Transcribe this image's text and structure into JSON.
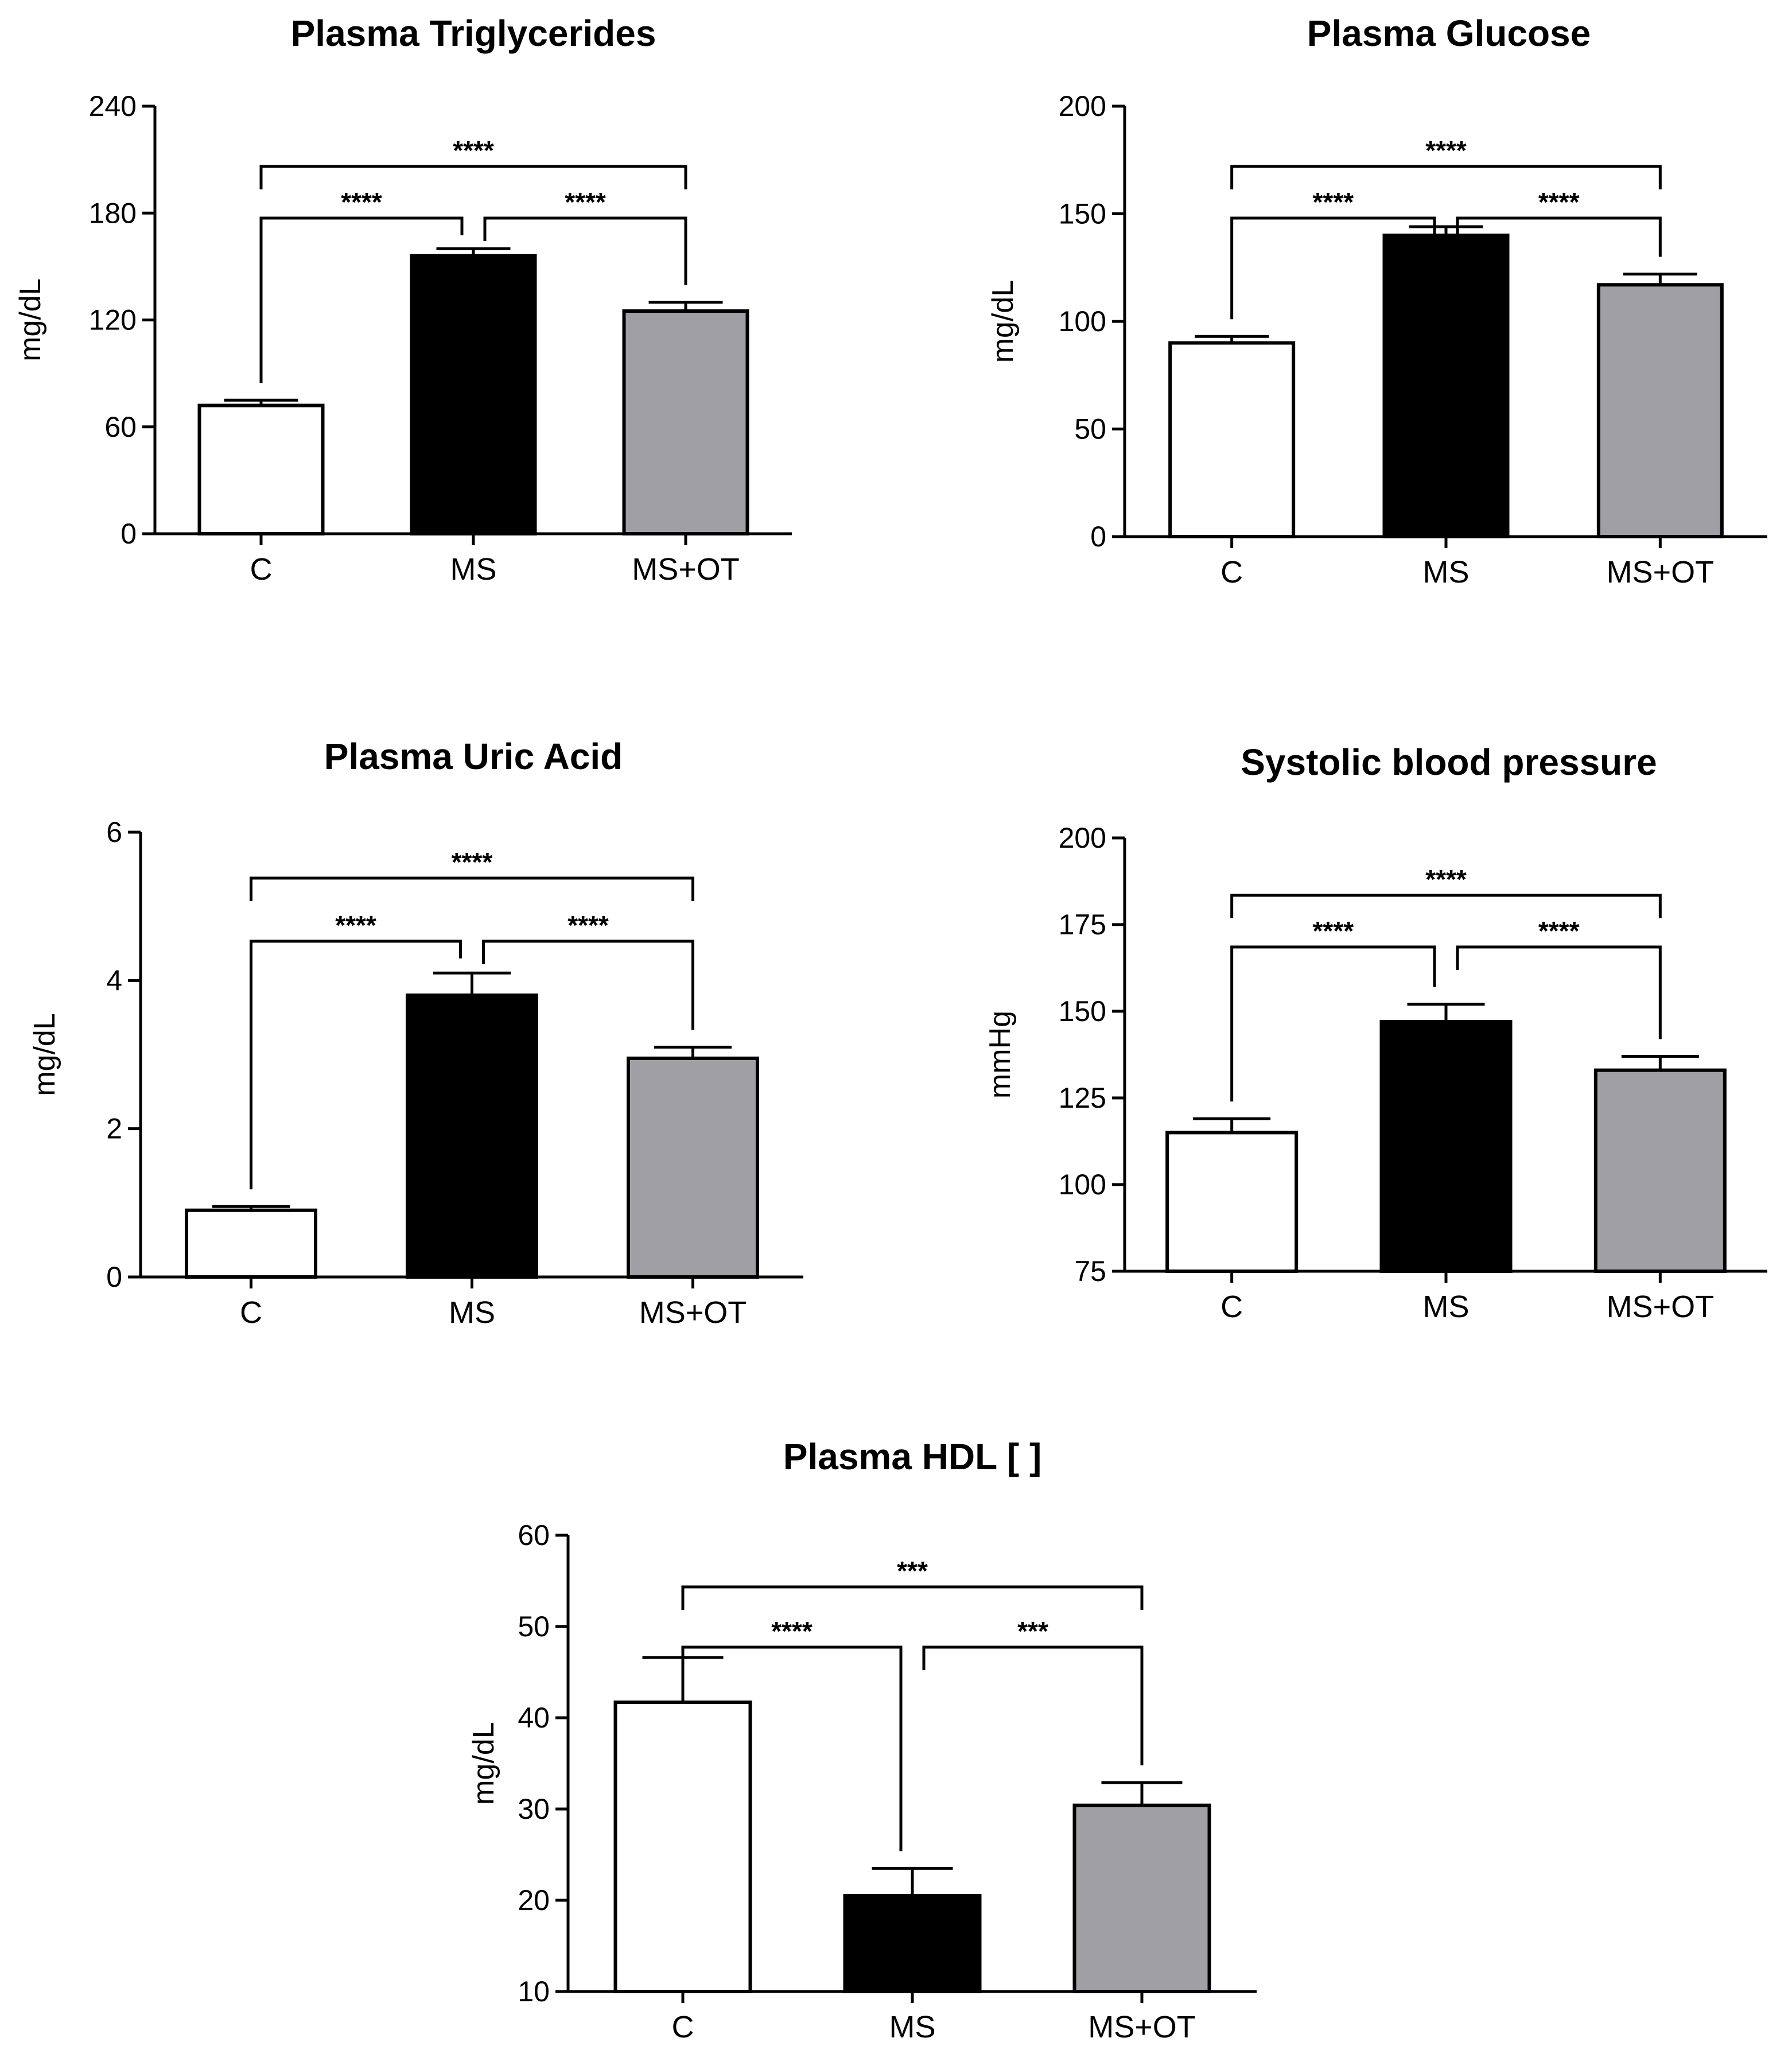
{
  "chart_data": [
    {
      "type": "bar",
      "title": "Plasma Triglycerides",
      "xlabel": "",
      "ylabel": "mg/dL",
      "ylim": [
        0,
        240
      ],
      "yticks": [
        0,
        60,
        120,
        180,
        240
      ],
      "categories": [
        "C",
        "MS",
        "MS+OT"
      ],
      "values": [
        72,
        156,
        125
      ],
      "errors": [
        3,
        4,
        5
      ],
      "bar_colors": [
        "#ffffff",
        "#000000",
        "#a0a0a4"
      ],
      "grid": false,
      "significance": [
        {
          "from": 0,
          "to": 1,
          "label": "****",
          "level": 1
        },
        {
          "from": 1,
          "to": 2,
          "label": "****",
          "level": 1
        },
        {
          "from": 0,
          "to": 2,
          "label": "****",
          "level": 2
        }
      ]
    },
    {
      "type": "bar",
      "title": "Plasma Glucose",
      "xlabel": "",
      "ylabel": "mg/dL",
      "ylim": [
        0,
        200
      ],
      "yticks": [
        0,
        50,
        100,
        150,
        200
      ],
      "categories": [
        "C",
        "MS",
        "MS+OT"
      ],
      "values": [
        90,
        140,
        117
      ],
      "errors": [
        3,
        4,
        5
      ],
      "bar_colors": [
        "#ffffff",
        "#000000",
        "#a0a0a4"
      ],
      "grid": false,
      "significance": [
        {
          "from": 0,
          "to": 1,
          "label": "****",
          "level": 1
        },
        {
          "from": 1,
          "to": 2,
          "label": "****",
          "level": 1
        },
        {
          "from": 0,
          "to": 2,
          "label": "****",
          "level": 2
        }
      ]
    },
    {
      "type": "bar",
      "title": "Plasma Uric Acid",
      "xlabel": "",
      "ylabel": "mg/dL",
      "ylim": [
        0,
        6
      ],
      "yticks": [
        0,
        2,
        4,
        6
      ],
      "categories": [
        "C",
        "MS",
        "MS+OT"
      ],
      "values": [
        0.9,
        3.8,
        2.95
      ],
      "errors": [
        0.05,
        0.3,
        0.15
      ],
      "bar_colors": [
        "#ffffff",
        "#000000",
        "#a0a0a4"
      ],
      "grid": false,
      "significance": [
        {
          "from": 0,
          "to": 1,
          "label": "****",
          "level": 1
        },
        {
          "from": 1,
          "to": 2,
          "label": "****",
          "level": 1
        },
        {
          "from": 0,
          "to": 2,
          "label": "****",
          "level": 2
        }
      ]
    },
    {
      "type": "bar",
      "title": "Systolic blood pressure",
      "xlabel": "",
      "ylabel": "mmHg",
      "ylim": [
        75,
        200
      ],
      "yticks": [
        75,
        100,
        125,
        150,
        175,
        200
      ],
      "categories": [
        "C",
        "MS",
        "MS+OT"
      ],
      "values": [
        115,
        147,
        133
      ],
      "errors": [
        4,
        5,
        4
      ],
      "bar_colors": [
        "#ffffff",
        "#000000",
        "#a0a0a4"
      ],
      "grid": false,
      "significance": [
        {
          "from": 0,
          "to": 1,
          "label": "****",
          "level": 1
        },
        {
          "from": 1,
          "to": 2,
          "label": "****",
          "level": 1
        },
        {
          "from": 0,
          "to": 2,
          "label": "****",
          "level": 2
        }
      ]
    },
    {
      "type": "bar",
      "title": "Plasma HDL [ ]",
      "xlabel": "",
      "ylabel": "mg/dL",
      "ylim": [
        10,
        60
      ],
      "yticks": [
        10,
        20,
        30,
        40,
        50,
        60
      ],
      "categories": [
        "C",
        "MS",
        "MS+OT"
      ],
      "values": [
        41.7,
        20.5,
        30.4
      ],
      "errors": [
        4.9,
        3,
        2.5
      ],
      "bar_colors": [
        "#ffffff",
        "#000000",
        "#a0a0a4"
      ],
      "grid": false,
      "significance": [
        {
          "from": 0,
          "to": 1,
          "label": "****",
          "level": 1
        },
        {
          "from": 1,
          "to": 2,
          "label": "***",
          "level": 1
        },
        {
          "from": 0,
          "to": 2,
          "label": "***",
          "level": 2
        }
      ]
    }
  ]
}
